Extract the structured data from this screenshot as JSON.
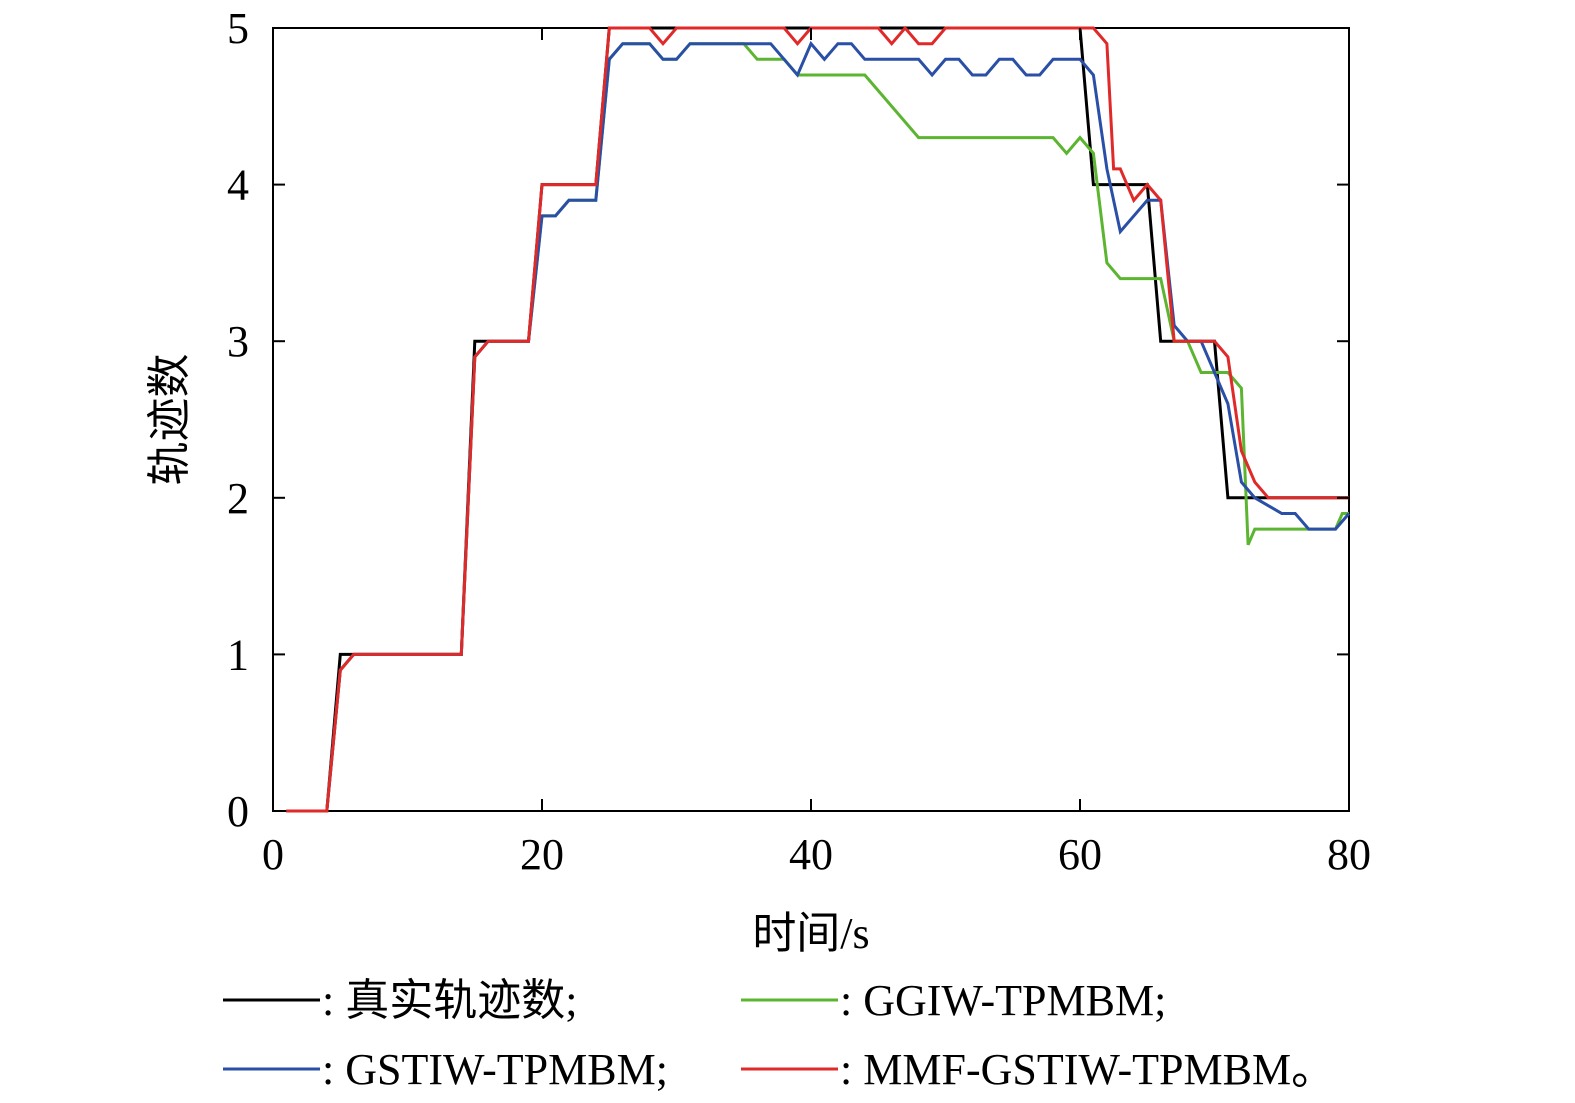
{
  "chart_data": {
    "type": "line",
    "title": "",
    "xlabel": "时间/s",
    "ylabel": "轨迹数",
    "xlim": [
      0,
      80
    ],
    "ylim": [
      0,
      5
    ],
    "xticks": [
      0,
      20,
      40,
      60,
      80
    ],
    "yticks": [
      0,
      1,
      2,
      3,
      4,
      5
    ],
    "grid": false,
    "legend_position": "bottom",
    "series": [
      {
        "name": "真实轨迹数",
        "legend_label": ": 真实轨迹数;",
        "color": "#000000",
        "points": [
          [
            1,
            0
          ],
          [
            4,
            0
          ],
          [
            5,
            1
          ],
          [
            14,
            1
          ],
          [
            15,
            3
          ],
          [
            19,
            3
          ],
          [
            20,
            4
          ],
          [
            24,
            4
          ],
          [
            25,
            5
          ],
          [
            60,
            5
          ],
          [
            61,
            4
          ],
          [
            65,
            4
          ],
          [
            66,
            3
          ],
          [
            70,
            3
          ],
          [
            71,
            2
          ],
          [
            80,
            2
          ]
        ]
      },
      {
        "name": "GGIW-TPMBM",
        "legend_label": ": GGIW-TPMBM;",
        "color": "#5cb531",
        "points": [
          [
            1,
            0
          ],
          [
            4,
            0
          ],
          [
            5,
            0.9
          ],
          [
            6,
            1
          ],
          [
            14,
            1
          ],
          [
            15,
            2.9
          ],
          [
            16,
            3
          ],
          [
            19,
            3
          ],
          [
            20,
            3.8
          ],
          [
            21,
            3.8
          ],
          [
            22,
            3.9
          ],
          [
            24,
            3.9
          ],
          [
            25,
            4.8
          ],
          [
            26,
            4.9
          ],
          [
            28,
            4.9
          ],
          [
            29,
            4.8
          ],
          [
            30,
            4.8
          ],
          [
            31,
            4.9
          ],
          [
            35,
            4.9
          ],
          [
            36,
            4.8
          ],
          [
            38,
            4.8
          ],
          [
            39,
            4.7
          ],
          [
            44,
            4.7
          ],
          [
            48,
            4.3
          ],
          [
            58,
            4.3
          ],
          [
            59,
            4.2
          ],
          [
            60,
            4.3
          ],
          [
            61,
            4.2
          ],
          [
            62,
            3.5
          ],
          [
            63,
            3.4
          ],
          [
            66,
            3.4
          ],
          [
            67,
            3.0
          ],
          [
            68,
            3.0
          ],
          [
            69,
            2.8
          ],
          [
            71,
            2.8
          ],
          [
            72,
            2.7
          ],
          [
            72.5,
            1.7
          ],
          [
            73,
            1.8
          ],
          [
            76,
            1.8
          ],
          [
            79,
            1.8
          ],
          [
            79.5,
            1.9
          ],
          [
            80,
            1.9
          ]
        ]
      },
      {
        "name": "GSTIW-TPMBM",
        "legend_label": ": GSTIW-TPMBM;",
        "color": "#2a4fa6",
        "points": [
          [
            1,
            0
          ],
          [
            4,
            0
          ],
          [
            5,
            0.9
          ],
          [
            6,
            1
          ],
          [
            14,
            1
          ],
          [
            15,
            2.9
          ],
          [
            16,
            3
          ],
          [
            19,
            3
          ],
          [
            20,
            3.8
          ],
          [
            21,
            3.8
          ],
          [
            22,
            3.9
          ],
          [
            24,
            3.9
          ],
          [
            25,
            4.8
          ],
          [
            26,
            4.9
          ],
          [
            28,
            4.9
          ],
          [
            29,
            4.8
          ],
          [
            30,
            4.8
          ],
          [
            31,
            4.9
          ],
          [
            37,
            4.9
          ],
          [
            38,
            4.8
          ],
          [
            39,
            4.7
          ],
          [
            40,
            4.9
          ],
          [
            41,
            4.8
          ],
          [
            42,
            4.9
          ],
          [
            43,
            4.9
          ],
          [
            44,
            4.8
          ],
          [
            48,
            4.8
          ],
          [
            49,
            4.7
          ],
          [
            50,
            4.8
          ],
          [
            51,
            4.8
          ],
          [
            52,
            4.7
          ],
          [
            53,
            4.7
          ],
          [
            54,
            4.8
          ],
          [
            55,
            4.8
          ],
          [
            56,
            4.7
          ],
          [
            57,
            4.7
          ],
          [
            58,
            4.8
          ],
          [
            60,
            4.8
          ],
          [
            61,
            4.7
          ],
          [
            62,
            4.1
          ],
          [
            63,
            3.7
          ],
          [
            65,
            3.9
          ],
          [
            66,
            3.9
          ],
          [
            67,
            3.1
          ],
          [
            68,
            3.0
          ],
          [
            69,
            3.0
          ],
          [
            70,
            2.8
          ],
          [
            71,
            2.6
          ],
          [
            72,
            2.1
          ],
          [
            73,
            2.0
          ],
          [
            75,
            1.9
          ],
          [
            76,
            1.9
          ],
          [
            77,
            1.8
          ],
          [
            79,
            1.8
          ],
          [
            80,
            1.9
          ]
        ]
      },
      {
        "name": "MMF-GSTIW-TPMBM",
        "legend_label": ": MMF-GSTIW-TPMBM。",
        "color": "#e02a2a",
        "points": [
          [
            1,
            0
          ],
          [
            4,
            0
          ],
          [
            5,
            0.9
          ],
          [
            6,
            1
          ],
          [
            14,
            1
          ],
          [
            15,
            2.9
          ],
          [
            16,
            3
          ],
          [
            19,
            3
          ],
          [
            20,
            4
          ],
          [
            24,
            4
          ],
          [
            25,
            5
          ],
          [
            28,
            5
          ],
          [
            29,
            4.9
          ],
          [
            30,
            5
          ],
          [
            38,
            5
          ],
          [
            39,
            4.9
          ],
          [
            40,
            5
          ],
          [
            45,
            5
          ],
          [
            46,
            4.9
          ],
          [
            47,
            5
          ],
          [
            48,
            4.9
          ],
          [
            49,
            4.9
          ],
          [
            50,
            5
          ],
          [
            61,
            5
          ],
          [
            62,
            4.9
          ],
          [
            62.5,
            4.1
          ],
          [
            63,
            4.1
          ],
          [
            64,
            3.9
          ],
          [
            65,
            4.0
          ],
          [
            66,
            3.9
          ],
          [
            67,
            3.0
          ],
          [
            70,
            3.0
          ],
          [
            71,
            2.9
          ],
          [
            72,
            2.3
          ],
          [
            73,
            2.1
          ],
          [
            74,
            2.0
          ],
          [
            80,
            2.0
          ]
        ]
      }
    ]
  }
}
